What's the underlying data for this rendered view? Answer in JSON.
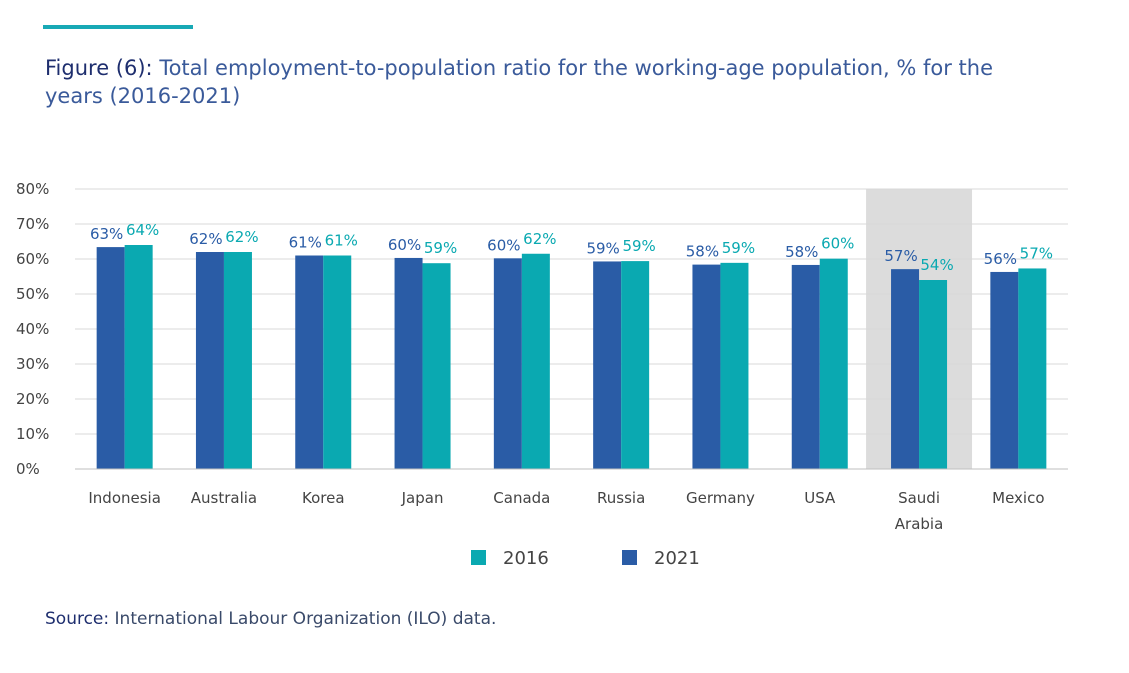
{
  "figure": {
    "label": "Figure (6):",
    "title": "Total employment-to-population ratio for the working-age population, % for the years (2016-2021)"
  },
  "source": {
    "label": "Source:",
    "text": "International Labour Organization (ILO) data."
  },
  "colors": {
    "accent": "#18a9b5",
    "series_2021": "#2a5ca6",
    "series_2016": "#0aa9b1",
    "highlight_band": "#dcdcdc",
    "grid": "#d9d9d9"
  },
  "chart_data": {
    "type": "bar",
    "categories": [
      "Indonesia",
      "Australia",
      "Korea",
      "Japan",
      "Canada",
      "Russia",
      "Germany",
      "USA",
      "Saudi Arabia",
      "Mexico"
    ],
    "category_labels": [
      [
        "Indonesia"
      ],
      [
        "Australia"
      ],
      [
        "Korea"
      ],
      [
        "Japan"
      ],
      [
        "Canada"
      ],
      [
        "Russia"
      ],
      [
        "Germany"
      ],
      [
        "USA"
      ],
      [
        "Saudi",
        "Arabia"
      ],
      [
        "Mexico"
      ]
    ],
    "series": [
      {
        "name": "2021",
        "color": "#2a5ca6",
        "values": [
          63,
          62,
          61,
          60,
          60,
          59,
          58,
          58,
          57,
          56
        ],
        "value_heights": [
          63.4,
          62.0,
          61.0,
          60.3,
          60.2,
          59.3,
          58.4,
          58.3,
          57.1,
          56.3
        ]
      },
      {
        "name": "2016",
        "color": "#0aa9b1",
        "values": [
          64,
          62,
          61,
          59,
          62,
          59,
          59,
          60,
          54,
          57
        ],
        "value_heights": [
          64.0,
          62.0,
          61.0,
          58.8,
          61.5,
          59.4,
          58.9,
          60.1,
          54.0,
          57.3
        ]
      }
    ],
    "value_labels": {
      "2021": [
        "63%",
        "62%",
        "61%",
        "60%",
        "60%",
        "59%",
        "58%",
        "58%",
        "57%",
        "56%"
      ],
      "2016": [
        "64%",
        "62%",
        "61%",
        "59%",
        "62%",
        "59%",
        "59%",
        "60%",
        "54%",
        "57%"
      ]
    },
    "y_ticks": [
      "0%",
      "10%",
      "20%",
      "30%",
      "40%",
      "50%",
      "60%",
      "70%",
      "80%"
    ],
    "ylim": [
      0,
      80
    ],
    "highlighted_category": "Saudi Arabia",
    "legend": [
      {
        "name": "2016",
        "color": "#0aa9b1"
      },
      {
        "name": "2021",
        "color": "#2a5ca6"
      }
    ],
    "legend_position": "bottom",
    "grid": true
  }
}
